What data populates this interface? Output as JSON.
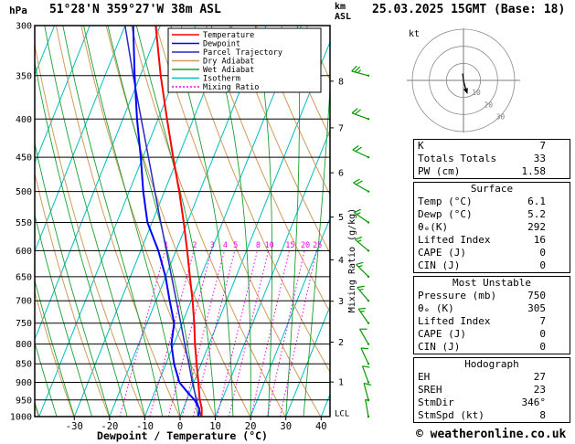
{
  "header": {
    "pressure_unit": "hPa",
    "station": "51°28'N 359°27'W 38m ASL",
    "altitude_unit": "km\nASL",
    "datetime": "25.03.2025 15GMT (Base: 18)"
  },
  "legend": {
    "items": [
      {
        "label": "Temperature",
        "color": "#ff0000",
        "dash": ""
      },
      {
        "label": "Dewpoint",
        "color": "#0000ff",
        "dash": ""
      },
      {
        "label": "Parcel Trajectory",
        "color": "#2929c0",
        "dash": ""
      },
      {
        "label": "Dry Adiabat",
        "color": "#cf9b5a",
        "dash": ""
      },
      {
        "label": "Wet Adiabat",
        "color": "#19a035",
        "dash": ""
      },
      {
        "label": "Isotherm",
        "color": "#00bdbd",
        "dash": ""
      },
      {
        "label": "Mixing Ratio",
        "color": "#f000f0",
        "dash": "2,2"
      }
    ]
  },
  "colors": {
    "temperature": "#ff0000",
    "dewpoint": "#0000ff",
    "parcel": "#2929c0",
    "dry_adiabat": "#cf9b5a",
    "wet_adiabat": "#19a035",
    "isotherm": "#00bdbd",
    "mixing_ratio": "#f000f0",
    "wind_barb": "#009900",
    "grid": "#000000"
  },
  "chart_data": {
    "type": "skewt-log-p",
    "title": "51°28'N 359°27'W 38m ASL",
    "xlabel": "Dewpoint / Temperature (°C)",
    "ylabel_left": "hPa",
    "ylabel_right": "Mixing Ratio (g/kg)",
    "pressure_range_hpa": [
      300,
      1000
    ],
    "pressure_ticks_hpa": [
      300,
      350,
      400,
      450,
      500,
      550,
      600,
      650,
      700,
      750,
      800,
      850,
      900,
      950,
      1000
    ],
    "temp_ticks_c": [
      -30,
      -20,
      -10,
      0,
      10,
      20,
      30,
      40
    ],
    "km_ticks": [
      {
        "km": 8,
        "hpa": 356
      },
      {
        "km": 7,
        "hpa": 411
      },
      {
        "km": 6,
        "hpa": 472
      },
      {
        "km": 5,
        "hpa": 541
      },
      {
        "km": 4,
        "hpa": 617
      },
      {
        "km": 3,
        "hpa": 701
      },
      {
        "km": 2,
        "hpa": 795
      },
      {
        "km": 1,
        "hpa": 899
      }
    ],
    "lcl_label": "LCL",
    "lcl_hpa": 990,
    "isotherm_step_c": 10,
    "mixing_ratio_lines_gkg": [
      1,
      2,
      3,
      4,
      5,
      8,
      10,
      15,
      20,
      25
    ],
    "temperature_profile_p_c": [
      [
        1000,
        6.1
      ],
      [
        975,
        5.2
      ],
      [
        950,
        3.7
      ],
      [
        925,
        2.5
      ],
      [
        900,
        1.3
      ],
      [
        850,
        -1.3
      ],
      [
        800,
        -4
      ],
      [
        750,
        -6.6
      ],
      [
        700,
        -9.6
      ],
      [
        650,
        -13.1
      ],
      [
        600,
        -16.8
      ],
      [
        550,
        -21
      ],
      [
        500,
        -25.8
      ],
      [
        450,
        -31.4
      ],
      [
        400,
        -37.5
      ],
      [
        350,
        -44.2
      ],
      [
        300,
        -51.3
      ]
    ],
    "dewpoint_profile_p_c": [
      [
        1000,
        5.2
      ],
      [
        975,
        4.5
      ],
      [
        950,
        2.2
      ],
      [
        925,
        -1
      ],
      [
        900,
        -4.1
      ],
      [
        850,
        -7.7
      ],
      [
        800,
        -10.7
      ],
      [
        750,
        -12.3
      ],
      [
        700,
        -16.1
      ],
      [
        650,
        -20
      ],
      [
        600,
        -25
      ],
      [
        550,
        -31.3
      ],
      [
        500,
        -36
      ],
      [
        450,
        -40.6
      ],
      [
        400,
        -46
      ],
      [
        350,
        -51.6
      ],
      [
        300,
        -57.7
      ]
    ],
    "parcel_profile_p_c": [
      [
        1000,
        6.1
      ],
      [
        990,
        5.3
      ],
      [
        950,
        2.8
      ],
      [
        900,
        -0.4
      ],
      [
        850,
        -3.5
      ],
      [
        800,
        -6.9
      ],
      [
        750,
        -10.4
      ],
      [
        700,
        -14.2
      ],
      [
        650,
        -18.3
      ],
      [
        600,
        -22.7
      ],
      [
        550,
        -27.5
      ],
      [
        500,
        -32.7
      ],
      [
        450,
        -38.4
      ],
      [
        400,
        -44.8
      ],
      [
        350,
        -52
      ],
      [
        300,
        -60
      ]
    ],
    "wind_barbs": [
      {
        "p": 1000,
        "dir": 350,
        "spd": 5
      },
      {
        "p": 950,
        "dir": 345,
        "spd": 10
      },
      {
        "p": 900,
        "dir": 340,
        "spd": 10
      },
      {
        "p": 850,
        "dir": 335,
        "spd": 10
      },
      {
        "p": 800,
        "dir": 330,
        "spd": 10
      },
      {
        "p": 750,
        "dir": 325,
        "spd": 15
      },
      {
        "p": 700,
        "dir": 320,
        "spd": 15
      },
      {
        "p": 650,
        "dir": 315,
        "spd": 15
      },
      {
        "p": 600,
        "dir": 310,
        "spd": 15
      },
      {
        "p": 550,
        "dir": 305,
        "spd": 15
      },
      {
        "p": 500,
        "dir": 300,
        "spd": 20
      },
      {
        "p": 450,
        "dir": 295,
        "spd": 20
      },
      {
        "p": 400,
        "dir": 290,
        "spd": 20
      },
      {
        "p": 350,
        "dir": 285,
        "spd": 25
      }
    ]
  },
  "hodograph": {
    "unit_label": "kt",
    "ring_values_kt": [
      10,
      20,
      30
    ],
    "trace_uv_kt": [
      [
        -0.5,
        4
      ],
      [
        0,
        0
      ],
      [
        1,
        -4
      ],
      [
        2,
        -7
      ]
    ]
  },
  "table": {
    "sections": [
      {
        "title": null,
        "rows": [
          {
            "label": "K",
            "value": "7"
          },
          {
            "label": "Totals Totals",
            "value": "33"
          },
          {
            "label": "PW (cm)",
            "value": "1.58"
          }
        ]
      },
      {
        "title": "Surface",
        "rows": [
          {
            "label": "Temp (°C)",
            "value": "6.1"
          },
          {
            "label": "Dewp (°C)",
            "value": "5.2"
          },
          {
            "label": "θₑ(K)",
            "value": "292"
          },
          {
            "label": "Lifted Index",
            "value": "16"
          },
          {
            "label": "CAPE (J)",
            "value": "0"
          },
          {
            "label": "CIN (J)",
            "value": "0"
          }
        ]
      },
      {
        "title": "Most Unstable",
        "rows": [
          {
            "label": "Pressure (mb)",
            "value": "750"
          },
          {
            "label": "θₑ (K)",
            "value": "305"
          },
          {
            "label": "Lifted Index",
            "value": "7"
          },
          {
            "label": "CAPE (J)",
            "value": "0"
          },
          {
            "label": "CIN (J)",
            "value": "0"
          }
        ]
      },
      {
        "title": "Hodograph",
        "rows": [
          {
            "label": "EH",
            "value": "27"
          },
          {
            "label": "SREH",
            "value": "23"
          },
          {
            "label": "StmDir",
            "value": "346°"
          },
          {
            "label": "StmSpd (kt)",
            "value": "8"
          }
        ]
      }
    ]
  },
  "footer": {
    "copyright": "© weatheronline.co.uk"
  }
}
